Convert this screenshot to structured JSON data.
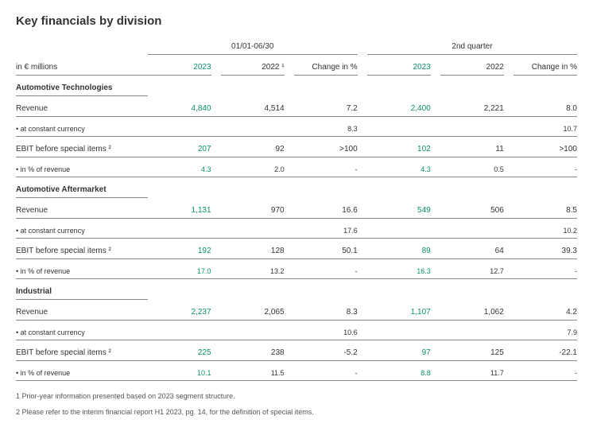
{
  "title": "Key financials by division",
  "unit_label": "in € millions",
  "group_headers": [
    "01/01-06/30",
    "2nd quarter"
  ],
  "col_headers": {
    "y2023": "2023",
    "y2022_fn": "2022 ¹",
    "y2022": "2022",
    "change": "Change in %"
  },
  "colors": {
    "accent": "#0a8f6b"
  },
  "sections": [
    {
      "name": "Automotive Technologies",
      "rows": [
        {
          "label": "Revenue",
          "h1_2023": "4,840",
          "h1_2022": "4,514",
          "h1_chg": "7.2",
          "q2_2023": "2,400",
          "q2_2022": "2,221",
          "q2_chg": "8.0"
        },
        {
          "label": "•  at constant currency",
          "sub": true,
          "h1_2023": "",
          "h1_2022": "",
          "h1_chg": "8.3",
          "q2_2023": "",
          "q2_2022": "",
          "q2_chg": "10.7"
        },
        {
          "label": "EBIT before special items ²",
          "h1_2023": "207",
          "h1_2022": "92",
          "h1_chg": ">100",
          "q2_2023": "102",
          "q2_2022": "11",
          "q2_chg": ">100"
        },
        {
          "label": "•  in % of revenue",
          "sub": true,
          "h1_2023": "4.3",
          "h1_2022": "2.0",
          "h1_chg": "-",
          "q2_2023": "4.3",
          "q2_2022": "0.5",
          "q2_chg": "-"
        }
      ]
    },
    {
      "name": "Automotive Aftermarket",
      "rows": [
        {
          "label": "Revenue",
          "h1_2023": "1,131",
          "h1_2022": "970",
          "h1_chg": "16.6",
          "q2_2023": "549",
          "q2_2022": "506",
          "q2_chg": "8.5"
        },
        {
          "label": "•  at constant currency",
          "sub": true,
          "h1_2023": "",
          "h1_2022": "",
          "h1_chg": "17.6",
          "q2_2023": "",
          "q2_2022": "",
          "q2_chg": "10.2"
        },
        {
          "label": "EBIT before special items ²",
          "h1_2023": "192",
          "h1_2022": "128",
          "h1_chg": "50.1",
          "q2_2023": "89",
          "q2_2022": "64",
          "q2_chg": "39.3"
        },
        {
          "label": "•  in % of revenue",
          "sub": true,
          "h1_2023": "17.0",
          "h1_2022": "13.2",
          "h1_chg": "-",
          "q2_2023": "16.3",
          "q2_2022": "12.7",
          "q2_chg": "-"
        }
      ]
    },
    {
      "name": "Industrial",
      "rows": [
        {
          "label": "Revenue",
          "h1_2023": "2,237",
          "h1_2022": "2,065",
          "h1_chg": "8.3",
          "q2_2023": "1,107",
          "q2_2022": "1,062",
          "q2_chg": "4.2"
        },
        {
          "label": "•  at constant currency",
          "sub": true,
          "h1_2023": "",
          "h1_2022": "",
          "h1_chg": "10.6",
          "q2_2023": "",
          "q2_2022": "",
          "q2_chg": "7.9"
        },
        {
          "label": "EBIT before special items ²",
          "h1_2023": "225",
          "h1_2022": "238",
          "h1_chg": "-5.2",
          "q2_2023": "97",
          "q2_2022": "125",
          "q2_chg": "-22.1"
        },
        {
          "label": "•  in % of revenue",
          "sub": true,
          "h1_2023": "10.1",
          "h1_2022": "11.5",
          "h1_chg": "-",
          "q2_2023": "8.8",
          "q2_2022": "11.7",
          "q2_chg": "-"
        }
      ]
    }
  ],
  "footnotes": [
    "1 Prior-year information presented based on 2023 segment structure.",
    "2 Please refer to the interim financial report H1 2023, pg. 14, for the definition of special items."
  ]
}
